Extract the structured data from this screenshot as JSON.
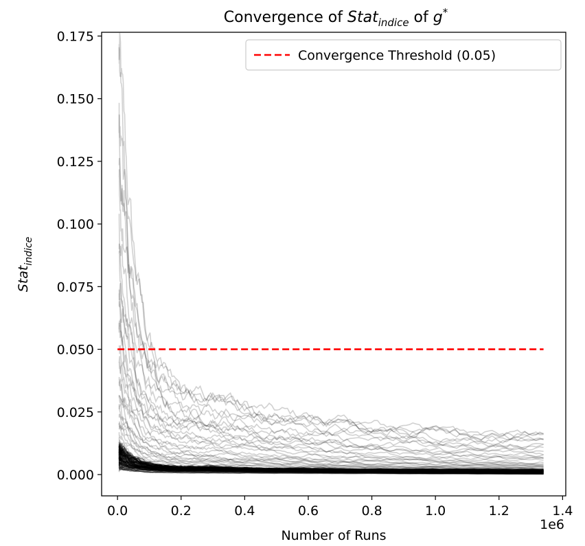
{
  "chart_data": {
    "type": "line",
    "title": {
      "prefix": "Convergence of ",
      "stat_symbol": "Stat",
      "stat_subscript": "indice",
      "middle": " of ",
      "g_symbol": "g",
      "g_superscript": "*"
    },
    "xlabel": "Number of Runs",
    "x_offset_label": "1e6",
    "ylabel": {
      "symbol": "Stat",
      "subscript": "indice"
    },
    "xlim": [
      -0.05,
      1.41
    ],
    "ylim": [
      -0.0085,
      0.1765
    ],
    "x_ticks": [
      0.0,
      0.2,
      0.4,
      0.6,
      0.8,
      1.0,
      1.2,
      1.4
    ],
    "x_tick_labels": [
      "0.0",
      "0.2",
      "0.4",
      "0.6",
      "0.8",
      "1.0",
      "1.2",
      "1.4"
    ],
    "y_ticks": [
      0.0,
      0.025,
      0.05,
      0.075,
      0.1,
      0.125,
      0.15,
      0.175
    ],
    "y_tick_labels": [
      "0.000",
      "0.025",
      "0.050",
      "0.075",
      "0.100",
      "0.125",
      "0.150",
      "0.175"
    ],
    "grid": false,
    "legend": {
      "position": "top-right",
      "entries": [
        "Convergence Threshold (0.05)"
      ]
    },
    "threshold": {
      "name": "Convergence Threshold (0.05)",
      "value": 0.05,
      "x_range": [
        0.0,
        1.34
      ],
      "color": "#ff0000",
      "style": "dashed"
    },
    "runs_line_color": "#000000",
    "x_range": [
      0.005,
      1.34
    ],
    "series_profiles": [
      {
        "start": 0.168,
        "mid": 0.031,
        "end": 0.016
      },
      {
        "start": 0.165,
        "mid": 0.03,
        "end": 0.015
      },
      {
        "start": 0.145,
        "mid": 0.029,
        "end": 0.016
      },
      {
        "start": 0.138,
        "mid": 0.028,
        "end": 0.015
      },
      {
        "start": 0.128,
        "mid": 0.027,
        "end": 0.014
      },
      {
        "start": 0.114,
        "mid": 0.025,
        "end": 0.013
      },
      {
        "start": 0.1,
        "mid": 0.023,
        "end": 0.012
      },
      {
        "start": 0.09,
        "mid": 0.021,
        "end": 0.011
      },
      {
        "start": 0.084,
        "mid": 0.02,
        "end": 0.01
      },
      {
        "start": 0.078,
        "mid": 0.019,
        "end": 0.009
      },
      {
        "start": 0.072,
        "mid": 0.018,
        "end": 0.0085
      },
      {
        "start": 0.066,
        "mid": 0.017,
        "end": 0.008
      },
      {
        "start": 0.06,
        "mid": 0.015,
        "end": 0.007
      },
      {
        "start": 0.055,
        "mid": 0.014,
        "end": 0.0065
      },
      {
        "start": 0.05,
        "mid": 0.013,
        "end": 0.006
      },
      {
        "start": 0.046,
        "mid": 0.012,
        "end": 0.0055
      },
      {
        "start": 0.042,
        "mid": 0.011,
        "end": 0.005
      },
      {
        "start": 0.039,
        "mid": 0.01,
        "end": 0.0045
      },
      {
        "start": 0.036,
        "mid": 0.009,
        "end": 0.004
      },
      {
        "start": 0.033,
        "mid": 0.008,
        "end": 0.0038
      },
      {
        "start": 0.03,
        "mid": 0.0075,
        "end": 0.0035
      },
      {
        "start": 0.028,
        "mid": 0.007,
        "end": 0.0033
      },
      {
        "start": 0.026,
        "mid": 0.0065,
        "end": 0.003
      },
      {
        "start": 0.024,
        "mid": 0.006,
        "end": 0.0028
      },
      {
        "start": 0.022,
        "mid": 0.0055,
        "end": 0.0026
      },
      {
        "start": 0.02,
        "mid": 0.005,
        "end": 0.0024
      },
      {
        "start": 0.018,
        "mid": 0.0046,
        "end": 0.0022
      },
      {
        "start": 0.016,
        "mid": 0.0042,
        "end": 0.002
      },
      {
        "start": 0.014,
        "mid": 0.0038,
        "end": 0.0018
      },
      {
        "start": 0.012,
        "mid": 0.0034,
        "end": 0.0016
      },
      {
        "start": 0.01,
        "mid": 0.003,
        "end": 0.0014
      },
      {
        "start": 0.008,
        "mid": 0.0026,
        "end": 0.0012
      },
      {
        "start": 0.006,
        "mid": 0.0022,
        "end": 0.001
      }
    ],
    "dense_band": {
      "count": 70,
      "start_max": 0.012,
      "end_max": 0.002
    }
  }
}
